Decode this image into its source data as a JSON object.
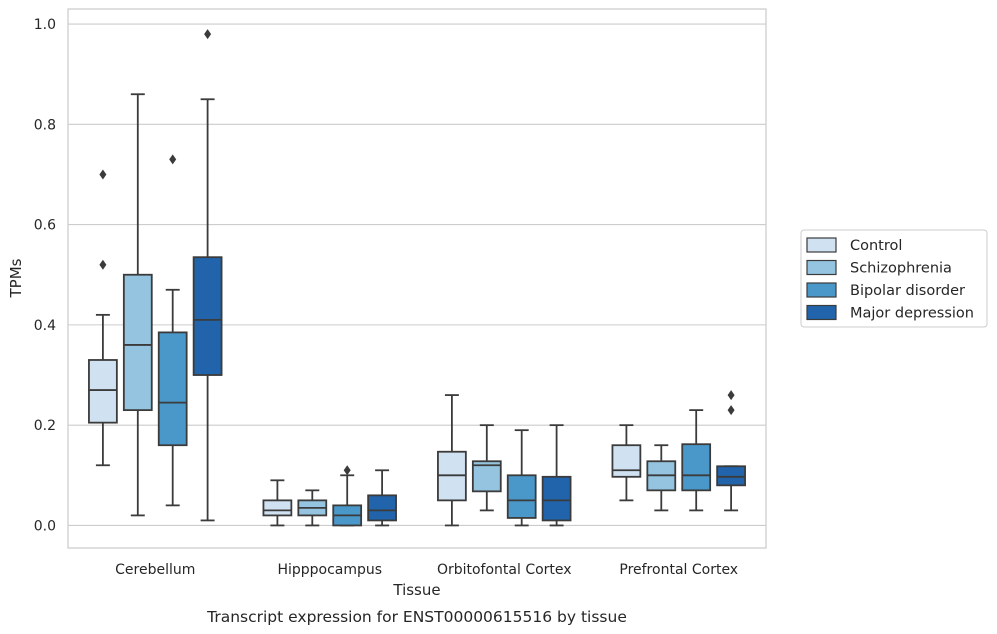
{
  "caption": "Transcript expression for ENST00000615516 by tissue",
  "chart_data": {
    "type": "box",
    "xlabel": "Tissue",
    "ylabel": "TPMs",
    "ylim": [
      -0.045,
      1.03
    ],
    "yticks": [
      "0.0",
      "0.2",
      "0.4",
      "0.6",
      "0.8",
      "1.0"
    ],
    "ytick_values": [
      0,
      0.2,
      0.4,
      0.6,
      0.8,
      1.0
    ],
    "grid": true,
    "legend_position": "right",
    "categories": [
      "Cerebellum",
      "Hipppocampus",
      "Orbitofontal Cortex",
      "Prefrontal Cortex"
    ],
    "series": [
      {
        "name": "Control",
        "color": "#d0e1f2",
        "boxes": [
          {
            "whislo": 0.12,
            "q1": 0.205,
            "med": 0.27,
            "q3": 0.33,
            "whishi": 0.42,
            "fliers": [
              0.52,
              0.7
            ]
          },
          {
            "whislo": 0.0,
            "q1": 0.02,
            "med": 0.03,
            "q3": 0.05,
            "whishi": 0.09,
            "fliers": []
          },
          {
            "whislo": 0.0,
            "q1": 0.05,
            "med": 0.1,
            "q3": 0.147,
            "whishi": 0.26,
            "fliers": []
          },
          {
            "whislo": 0.05,
            "q1": 0.097,
            "med": 0.11,
            "q3": 0.16,
            "whishi": 0.2,
            "fliers": []
          }
        ]
      },
      {
        "name": "Schizophrenia",
        "color": "#94c4df",
        "boxes": [
          {
            "whislo": 0.02,
            "q1": 0.23,
            "med": 0.36,
            "q3": 0.5,
            "whishi": 0.86,
            "fliers": []
          },
          {
            "whislo": 0.0,
            "q1": 0.02,
            "med": 0.035,
            "q3": 0.05,
            "whishi": 0.07,
            "fliers": []
          },
          {
            "whislo": 0.03,
            "q1": 0.068,
            "med": 0.12,
            "q3": 0.128,
            "whishi": 0.2,
            "fliers": []
          },
          {
            "whislo": 0.03,
            "q1": 0.07,
            "med": 0.1,
            "q3": 0.128,
            "whishi": 0.16,
            "fliers": []
          }
        ]
      },
      {
        "name": "Bipolar disorder",
        "color": "#4a98c9",
        "boxes": [
          {
            "whislo": 0.04,
            "q1": 0.16,
            "med": 0.245,
            "q3": 0.385,
            "whishi": 0.47,
            "fliers": [
              0.73
            ]
          },
          {
            "whislo": 0.0,
            "q1": 0.0,
            "med": 0.02,
            "q3": 0.04,
            "whishi": 0.1,
            "fliers": [
              0.11
            ]
          },
          {
            "whislo": 0.0,
            "q1": 0.015,
            "med": 0.05,
            "q3": 0.1,
            "whishi": 0.19,
            "fliers": []
          },
          {
            "whislo": 0.03,
            "q1": 0.07,
            "med": 0.1,
            "q3": 0.162,
            "whishi": 0.23,
            "fliers": []
          }
        ]
      },
      {
        "name": "Major depression",
        "color": "#2164ab",
        "boxes": [
          {
            "whislo": 0.01,
            "q1": 0.3,
            "med": 0.41,
            "q3": 0.535,
            "whishi": 0.85,
            "fliers": [
              0.98
            ]
          },
          {
            "whislo": 0.0,
            "q1": 0.01,
            "med": 0.03,
            "q3": 0.06,
            "whishi": 0.11,
            "fliers": []
          },
          {
            "whislo": 0.0,
            "q1": 0.01,
            "med": 0.05,
            "q3": 0.097,
            "whishi": 0.2,
            "fliers": []
          },
          {
            "whislo": 0.03,
            "q1": 0.08,
            "med": 0.097,
            "q3": 0.118,
            "whishi": 0.118,
            "fliers": [
              0.23,
              0.26
            ]
          }
        ]
      }
    ]
  }
}
